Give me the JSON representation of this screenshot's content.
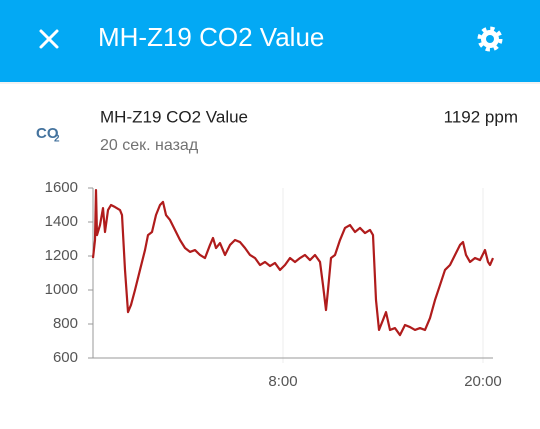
{
  "header": {
    "title": "MH-Z19 CO2 Value"
  },
  "entity": {
    "icon": {
      "main": "CO",
      "sub": "2"
    },
    "name": "MH-Z19 CO2 Value",
    "last_changed": "20 сек. назад",
    "state": "1192 ppm"
  },
  "chart_data": {
    "type": "line",
    "x": [
      -3.4,
      -3.28,
      -3.22,
      -3.16,
      -2.98,
      -2.8,
      -2.68,
      -2.5,
      -2.32,
      -2.08,
      -1.78,
      -1.66,
      -1.48,
      -1.3,
      -1.12,
      -0.88,
      -0.58,
      -0.28,
      -0.1,
      0.14,
      0.38,
      0.62,
      0.8,
      0.98,
      1.22,
      1.52,
      1.82,
      2.12,
      2.42,
      2.72,
      3.02,
      3.32,
      3.62,
      3.8,
      3.98,
      4.22,
      4.52,
      4.82,
      5.12,
      5.42,
      5.72,
      6.02,
      6.32,
      6.62,
      6.92,
      7.22,
      7.52,
      7.82,
      8.12,
      8.42,
      8.72,
      9.02,
      9.32,
      9.62,
      9.92,
      10.22,
      10.4,
      10.58,
      10.7,
      10.88,
      11.12,
      11.42,
      11.72,
      12.02,
      12.32,
      12.62,
      12.92,
      13.22,
      13.4,
      13.58,
      13.76,
      14.0,
      14.18,
      14.42,
      14.72,
      15.02,
      15.32,
      15.62,
      15.92,
      16.22,
      16.52,
      16.82,
      17.12,
      17.42,
      17.72,
      18.02,
      18.32,
      18.62,
      18.8,
      18.98,
      19.22,
      19.52,
      19.82,
      20.12,
      20.3,
      20.42,
      20.6
    ],
    "series": [
      {
        "name": "MH-Z19 CO2 Value",
        "color": "#b01c1c",
        "values": [
          1188,
          1294,
          1588,
          1323,
          1382,
          1482,
          1341,
          1470,
          1500,
          1488,
          1470,
          1441,
          1118,
          870,
          912,
          1000,
          1118,
          1235,
          1323,
          1341,
          1441,
          1500,
          1518,
          1441,
          1412,
          1353,
          1294,
          1247,
          1224,
          1235,
          1206,
          1188,
          1265,
          1306,
          1247,
          1276,
          1206,
          1265,
          1294,
          1282,
          1247,
          1206,
          1188,
          1147,
          1165,
          1141,
          1159,
          1118,
          1147,
          1188,
          1165,
          1188,
          1206,
          1176,
          1206,
          1165,
          1029,
          882,
          1000,
          1188,
          1206,
          1294,
          1365,
          1382,
          1341,
          1365,
          1335,
          1353,
          1323,
          941,
          765,
          824,
          870,
          765,
          776,
          735,
          794,
          782,
          765,
          776,
          765,
          835,
          941,
          1029,
          1118,
          1147,
          1206,
          1265,
          1282,
          1206,
          1165,
          1188,
          1176,
          1235,
          1165,
          1147,
          1188
        ]
      }
    ],
    "xlim": [
      -3.4,
      20.6
    ],
    "xticks": [
      {
        "value": 8,
        "label": "8:00"
      },
      {
        "value": 20,
        "label": "20:00"
      }
    ],
    "ylim": [
      600,
      1600
    ],
    "yticks": [
      600,
      800,
      1000,
      1200,
      1400,
      1600
    ]
  }
}
